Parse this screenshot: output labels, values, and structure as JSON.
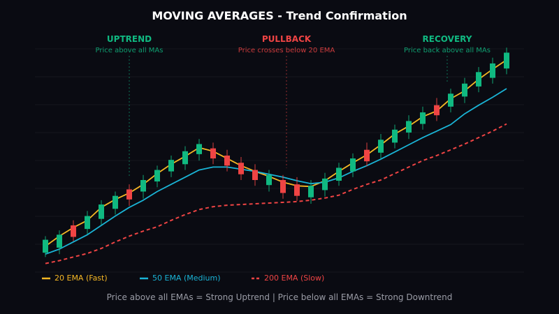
{
  "chart_data": {
    "type": "candlestick",
    "title": "MOVING AVERAGES - Trend Confirmation",
    "grid": true,
    "ylim": [
      30,
      350
    ],
    "candles": [
      {
        "o": 57,
        "h": 80,
        "l": 51,
        "c": 75
      },
      {
        "o": 64,
        "h": 88,
        "l": 55,
        "c": 82
      },
      {
        "o": 95,
        "h": 102,
        "l": 73,
        "c": 79
      },
      {
        "o": 90,
        "h": 115,
        "l": 83,
        "c": 108
      },
      {
        "o": 104,
        "h": 130,
        "l": 96,
        "c": 124
      },
      {
        "o": 118,
        "h": 142,
        "l": 110,
        "c": 136
      },
      {
        "o": 145,
        "h": 152,
        "l": 122,
        "c": 131
      },
      {
        "o": 142,
        "h": 165,
        "l": 132,
        "c": 158
      },
      {
        "o": 156,
        "h": 178,
        "l": 148,
        "c": 172
      },
      {
        "o": 170,
        "h": 192,
        "l": 162,
        "c": 186
      },
      {
        "o": 180,
        "h": 205,
        "l": 172,
        "c": 198
      },
      {
        "o": 194,
        "h": 215,
        "l": 185,
        "c": 208
      },
      {
        "o": 202,
        "h": 210,
        "l": 180,
        "c": 188
      },
      {
        "o": 192,
        "h": 200,
        "l": 170,
        "c": 178
      },
      {
        "o": 182,
        "h": 190,
        "l": 158,
        "c": 166
      },
      {
        "o": 172,
        "h": 180,
        "l": 150,
        "c": 158
      },
      {
        "o": 151,
        "h": 172,
        "l": 142,
        "c": 165
      },
      {
        "o": 158,
        "h": 165,
        "l": 132,
        "c": 140
      },
      {
        "o": 152,
        "h": 162,
        "l": 129,
        "c": 136
      },
      {
        "o": 134,
        "h": 158,
        "l": 125,
        "c": 150
      },
      {
        "o": 144,
        "h": 168,
        "l": 135,
        "c": 160
      },
      {
        "o": 157,
        "h": 182,
        "l": 150,
        "c": 175
      },
      {
        "o": 170,
        "h": 195,
        "l": 162,
        "c": 188
      },
      {
        "o": 200,
        "h": 210,
        "l": 177,
        "c": 184
      },
      {
        "o": 196,
        "h": 222,
        "l": 188,
        "c": 214
      },
      {
        "o": 210,
        "h": 235,
        "l": 202,
        "c": 228
      },
      {
        "o": 224,
        "h": 248,
        "l": 215,
        "c": 240
      },
      {
        "o": 236,
        "h": 260,
        "l": 228,
        "c": 252
      },
      {
        "o": 262,
        "h": 272,
        "l": 240,
        "c": 248
      },
      {
        "o": 260,
        "h": 285,
        "l": 252,
        "c": 278
      },
      {
        "o": 274,
        "h": 300,
        "l": 265,
        "c": 292
      },
      {
        "o": 288,
        "h": 315,
        "l": 280,
        "c": 308
      },
      {
        "o": 300,
        "h": 328,
        "l": 292,
        "c": 320
      },
      {
        "o": 313,
        "h": 342,
        "l": 305,
        "c": 335
      }
    ],
    "series": [
      {
        "name": "20 EMA (Fast)",
        "color": "#f5b724",
        "style": "solid",
        "values": [
          66,
          80,
          92,
          102,
          120,
          131,
          140,
          152,
          167,
          180,
          191,
          203,
          198,
          188,
          178,
          170,
          163,
          155,
          150,
          149,
          157,
          170,
          182,
          193,
          207,
          222,
          233,
          246,
          254,
          271,
          282,
          298,
          312,
          325
        ]
      },
      {
        "name": "50 EMA (Medium)",
        "color": "#1ab4d6",
        "style": "solid",
        "values": [
          55,
          62,
          72,
          82,
          95,
          108,
          120,
          130,
          142,
          152,
          162,
          172,
          176,
          176,
          173,
          170,
          166,
          162,
          157,
          153,
          155,
          161,
          170,
          178,
          187,
          197,
          207,
          217,
          226,
          235,
          250,
          262,
          273,
          285
        ]
      },
      {
        "name": "200 EMA (Slow)",
        "color": "#ef4444",
        "style": "dashed",
        "values": [
          42,
          46,
          51,
          56,
          63,
          72,
          80,
          87,
          93,
          102,
          110,
          117,
          121,
          123,
          124,
          125,
          126,
          127,
          128,
          130,
          133,
          137,
          145,
          152,
          158,
          167,
          176,
          185,
          192,
          200,
          208,
          217,
          226,
          236
        ]
      }
    ],
    "annotations": [
      {
        "title": "UPTREND",
        "subtitle": "Price above all MAs",
        "color": "#10b981",
        "at_candle": 6
      },
      {
        "title": "PULLBACK",
        "subtitle": "Price crosses below 20 EMA",
        "color": "#ef4444",
        "at_candle": 17.25
      },
      {
        "title": "RECOVERY",
        "subtitle": "Price back above all MAs",
        "color": "#10b981",
        "at_candle": 28.75
      }
    ],
    "legend_placement": "bottom-left",
    "footnote": "Price above all EMAs = Strong Uptrend | Price below all EMAs = Strong Downtrend",
    "colors": {
      "up": "#10b981",
      "down": "#ef4444",
      "background": "#0a0b12",
      "grid": "#15171f"
    }
  }
}
